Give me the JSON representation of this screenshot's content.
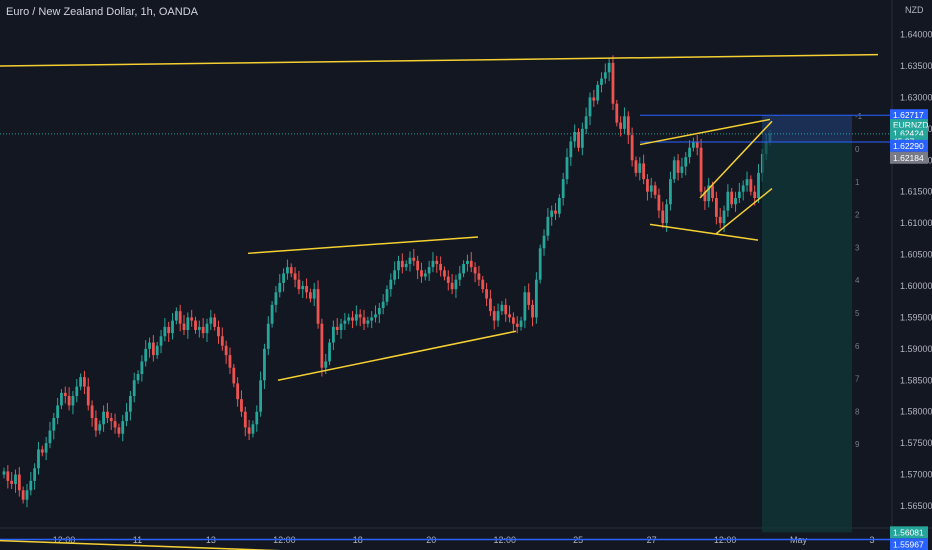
{
  "header": {
    "title": "Euro / New Zealand Dollar, 1h, OANDA"
  },
  "colors": {
    "background": "#131722",
    "up": "#26a69a",
    "down": "#ef5350",
    "trendline": "#f5d033",
    "level_line": "#2962ff",
    "grid": "#1e222d",
    "text": "#b2b5be",
    "fib_upper_fill": "#1f3a6b",
    "fib_lower_fill": "#0f3b3a"
  },
  "chart_data": {
    "type": "candlestick",
    "currency": "NZD",
    "symbol_tag": "EURNZD",
    "ylim": [
      1.5615,
      1.6455
    ],
    "yticks": [
      "1.64000",
      "1.63500",
      "1.63000",
      "1.62500",
      "1.62000",
      "1.61500",
      "1.61000",
      "1.60500",
      "1.60000",
      "1.59500",
      "1.59000",
      "1.58500",
      "1.58000",
      "1.57500",
      "1.57000",
      "1.56500"
    ],
    "xticks": [
      "12:00",
      "11",
      "13",
      "12:00",
      "18",
      "20",
      "12:00",
      "25",
      "27",
      "12:00",
      "May",
      "3"
    ],
    "price_tags": [
      {
        "label": "1.62717",
        "value": 1.62717,
        "color": "#2962ff"
      },
      {
        "label": "EURNZD",
        "value": 1.6256,
        "color": "#26a69a"
      },
      {
        "label": "1.62424",
        "value": 1.62424,
        "color": "#26a69a"
      },
      {
        "label": "45:37",
        "value": 1.623,
        "color": "#26a69a"
      },
      {
        "label": "1.62290",
        "value": 1.6223,
        "color": "#2962ff"
      },
      {
        "label": "1.62184",
        "value": 1.6204,
        "color": "#787b86"
      },
      {
        "label": "1.56081",
        "value": 1.56081,
        "color": "#26a69a"
      },
      {
        "label": "1.55967",
        "value": 1.5589,
        "color": "#2962ff"
      }
    ],
    "fib_levels": [
      "-1",
      "0",
      "1",
      "2",
      "3",
      "4",
      "5",
      "6",
      "7",
      "8",
      "9"
    ],
    "position": {
      "entry": 1.6229,
      "stop": 1.62717,
      "target": 1.56081
    },
    "support_level": 1.55967,
    "candles_close": [
      1.5705,
      1.569,
      1.5685,
      1.57,
      1.5675,
      1.566,
      1.5675,
      1.569,
      1.571,
      1.574,
      1.5735,
      1.575,
      1.577,
      1.579,
      1.581,
      1.583,
      1.5825,
      1.581,
      1.5825,
      1.584,
      1.5855,
      1.584,
      1.581,
      1.579,
      1.577,
      1.578,
      1.58,
      1.579,
      1.5785,
      1.5775,
      1.5765,
      1.5785,
      1.58,
      1.5825,
      1.585,
      1.586,
      1.588,
      1.59,
      1.591,
      1.589,
      1.5905,
      1.592,
      1.5935,
      1.5925,
      1.5945,
      1.596,
      1.594,
      1.593,
      1.595,
      1.5945,
      1.593,
      1.5935,
      1.5925,
      1.594,
      1.595,
      1.5935,
      1.592,
      1.5905,
      1.589,
      1.587,
      1.5845,
      1.582,
      1.58,
      1.5775,
      1.5765,
      1.578,
      1.58,
      1.585,
      1.59,
      1.594,
      1.597,
      1.599,
      1.6005,
      1.602,
      1.603,
      1.602,
      1.601,
      1.5995,
      1.6,
      1.599,
      1.598,
      1.5995,
      1.594,
      1.587,
      1.588,
      1.591,
      1.5935,
      1.593,
      1.594,
      1.5945,
      1.595,
      1.5945,
      1.5955,
      1.595,
      1.594,
      1.5945,
      1.595,
      1.5955,
      1.5965,
      1.5975,
      1.5995,
      1.601,
      1.6025,
      1.604,
      1.603,
      1.6035,
      1.6045,
      1.604,
      1.6025,
      1.6015,
      1.602,
      1.603,
      1.604,
      1.6035,
      1.6025,
      1.6015,
      1.6005,
      1.5995,
      1.601,
      1.602,
      1.6035,
      1.604,
      1.603,
      1.602,
      1.601,
      1.5995,
      1.598,
      1.596,
      1.5945,
      1.596,
      1.597,
      1.5955,
      1.595,
      1.594,
      1.5935,
      1.5945,
      1.599,
      1.597,
      1.595,
      1.601,
      1.606,
      1.608,
      1.611,
      1.612,
      1.6115,
      1.614,
      1.617,
      1.6205,
      1.623,
      1.6245,
      1.622,
      1.625,
      1.627,
      1.63,
      1.6295,
      1.632,
      1.633,
      1.634,
      1.6355,
      1.629,
      1.626,
      1.625,
      1.627,
      1.624,
      1.62,
      1.618,
      1.6195,
      1.617,
      1.615,
      1.616,
      1.6145,
      1.612,
      1.61,
      1.613,
      1.617,
      1.62,
      1.618,
      1.619,
      1.6205,
      1.622,
      1.623,
      1.622,
      1.615,
      1.6135,
      1.616,
      1.614,
      1.611,
      1.61,
      1.612,
      1.615,
      1.613,
      1.614,
      1.615,
      1.616,
      1.617,
      1.615,
      1.614,
      1.618,
      1.621,
      1.623,
      1.6242
    ],
    "trendlines": [
      {
        "name": "top-resistance",
        "from": [
          0,
          1.635
        ],
        "to": [
          878,
          1.6368
        ]
      },
      {
        "name": "bottom-support",
        "from": [
          0,
          1.5595
        ],
        "to": [
          694,
          1.5555
        ]
      },
      {
        "name": "flag1-upper",
        "from": [
          248,
          1.6052
        ],
        "to": [
          478,
          1.6078
        ]
      },
      {
        "name": "flag1-lower",
        "from": [
          278,
          1.585
        ],
        "to": [
          516,
          1.5928
        ]
      },
      {
        "name": "wedge-upper-a",
        "from": [
          640,
          1.6225
        ],
        "to": [
          770,
          1.6265
        ]
      },
      {
        "name": "wedge-lower-a",
        "from": [
          650,
          1.6098
        ],
        "to": [
          758,
          1.6073
        ]
      },
      {
        "name": "wedge-upper-b",
        "from": [
          700,
          1.614
        ],
        "to": [
          772,
          1.6262
        ]
      },
      {
        "name": "wedge-lower-b",
        "from": [
          716,
          1.6083
        ],
        "to": [
          772,
          1.6155
        ]
      }
    ]
  }
}
